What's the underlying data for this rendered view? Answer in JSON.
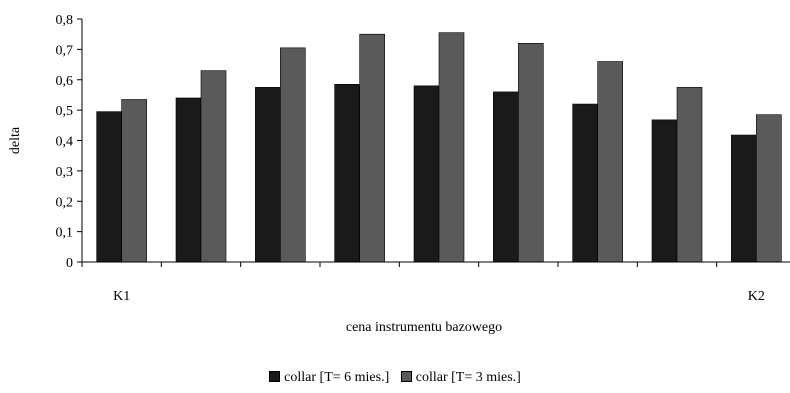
{
  "chart_data": {
    "type": "bar",
    "categories": [
      "K1",
      "",
      "",
      "",
      "",
      "",
      "",
      "",
      "K2"
    ],
    "series": [
      {
        "name": "collar [T= 6 mies.]",
        "color": "#1a1a1a",
        "values": [
          0.495,
          0.54,
          0.575,
          0.585,
          0.58,
          0.56,
          0.52,
          0.468,
          0.418
        ]
      },
      {
        "name": "collar [T= 3 mies.]",
        "color": "#5a5a5a",
        "values": [
          0.535,
          0.63,
          0.705,
          0.75,
          0.755,
          0.72,
          0.66,
          0.575,
          0.485
        ]
      }
    ],
    "xlabel": "cena instrumentu bazowego",
    "ylabel": "delta",
    "ylim": [
      0,
      0.8
    ],
    "yticks": [
      "0",
      "0,1",
      "0,2",
      "0,3",
      "0,4",
      "0,5",
      "0,6",
      "0,7",
      "0,8"
    ],
    "grid": false,
    "legend_position": "bottom"
  }
}
